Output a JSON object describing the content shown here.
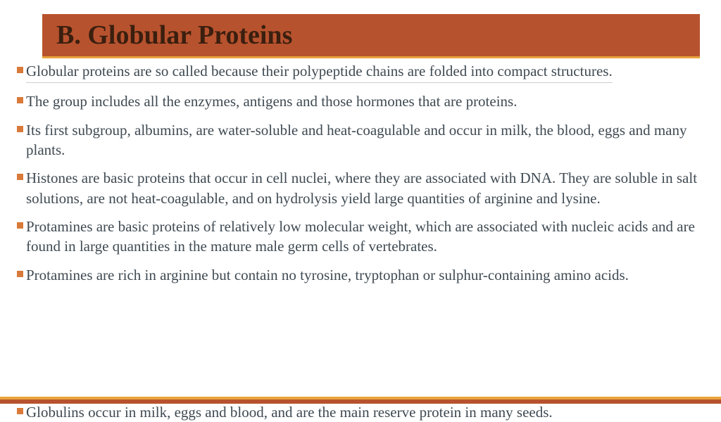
{
  "title": "B. Globular Proteins",
  "colors": {
    "title_bg": "#b7522e",
    "title_underline": "#e8a33d",
    "title_text": "#3a1f0f",
    "bullet": "#d97a3a",
    "body_text": "#3f4a52",
    "background": "#ffffff"
  },
  "typography": {
    "title_fontsize": 38,
    "body_fontsize": 21,
    "font_family": "Georgia"
  },
  "bullets": [
    "Globular proteins are so called because their polypeptide chains are folded into compact structures.",
    "The group includes all the enzymes, antigens and those hormones that are proteins.",
    "Its first subgroup, albumins, are water-soluble and heat-coagulable and occur in milk, the blood, eggs and many plants.",
    "Histones are basic proteins that occur in cell nuclei, where they are associated with DNA. They are soluble in salt solutions, are not heat-coagulable, and on hydrolysis yield large quantities of arginine and lysine.",
    "Protamines are basic proteins of relatively low molecular weight, which are associated with nucleic acids and are found in large quantities in the mature male germ cells of vertebrates.",
    "Protamines are rich in arginine but contain no tyrosine, tryptophan or sulphur-containing amino acids.",
    "Globulins occur in milk, eggs and blood, and are the main reserve protein in many seeds."
  ]
}
